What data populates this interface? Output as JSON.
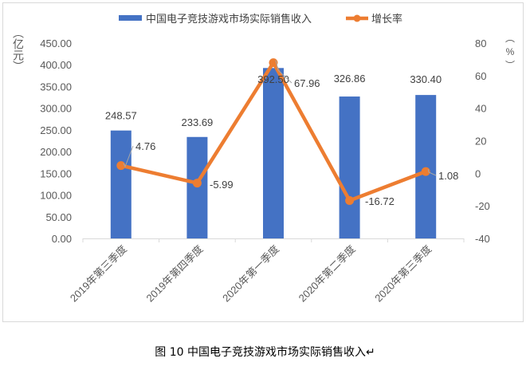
{
  "chart_data": {
    "type": "bar+line",
    "categories": [
      "2019年第三季度",
      "2019年第四季度",
      "2020年第一季度",
      "2020年第二季度",
      "2020年第三季度"
    ],
    "series": [
      {
        "name": "中国电子竞技游戏市场实际销售收入",
        "type": "bar",
        "axis": "left",
        "color": "#4472C4",
        "values": [
          248.57,
          233.69,
          392.5,
          326.86,
          330.4
        ],
        "labels": [
          "248.57",
          "233.69",
          "392.50",
          "326.86",
          "330.40"
        ]
      },
      {
        "name": "增长率",
        "type": "line",
        "axis": "right",
        "color": "#ED7D31",
        "values": [
          4.76,
          -5.99,
          67.96,
          -16.72,
          1.08
        ],
        "labels": [
          "4.76",
          "-5.99",
          "67.96",
          "-16.72",
          "1.08"
        ]
      }
    ],
    "y_left": {
      "label": "（亿元）",
      "label_chars": [
        "︵",
        "亿",
        "元",
        "︶"
      ],
      "range": [
        0,
        450
      ],
      "ticks": [
        "0.00",
        "50.00",
        "100.00",
        "150.00",
        "200.00",
        "250.00",
        "300.00",
        "350.00",
        "400.00",
        "450.00"
      ]
    },
    "y_right": {
      "label": "（%）",
      "label_chars": [
        "︵",
        "%",
        "︶"
      ],
      "range": [
        -40,
        80
      ],
      "ticks": [
        "-40",
        "-20",
        "0",
        "20",
        "40",
        "60",
        "80"
      ]
    },
    "legend": "top",
    "grid": false
  },
  "caption": "图 10  中国电子竞技游戏市场实际销售收入↵"
}
